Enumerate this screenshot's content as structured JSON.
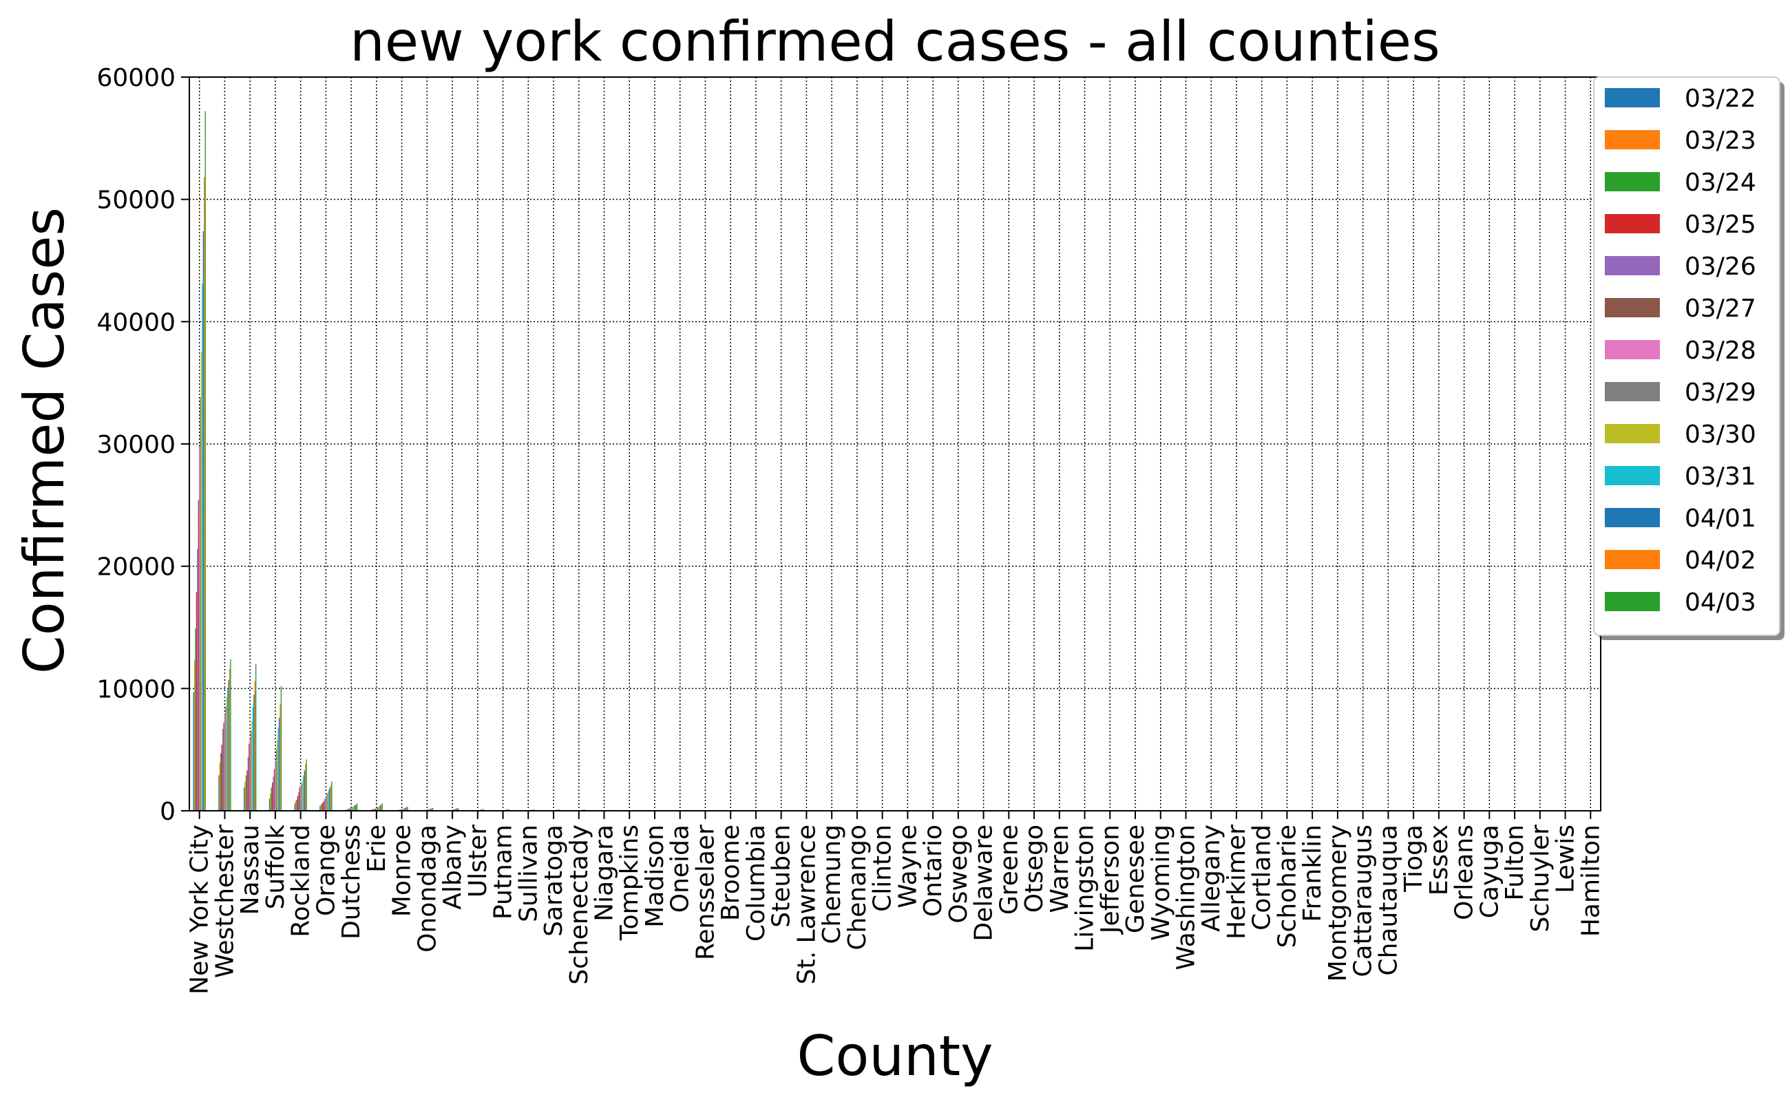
{
  "chart_data": {
    "type": "bar",
    "title": "new york confirmed cases - all counties",
    "xlabel": "County",
    "ylabel": "Confirmed Cases",
    "ylim": [
      0,
      60000
    ],
    "yticks": [
      0,
      10000,
      20000,
      30000,
      40000,
      50000,
      60000
    ],
    "grid": true,
    "legend_position": "top-right",
    "colors": [
      "#1f77b4",
      "#ff7f0e",
      "#2ca02c",
      "#d62728",
      "#9467bd",
      "#8c564b",
      "#e377c2",
      "#7f7f7f",
      "#bcbd22",
      "#17becf",
      "#1f77b4",
      "#ff7f0e",
      "#2ca02c"
    ],
    "categories": [
      "New York City",
      "Westchester",
      "Nassau",
      "Suffolk",
      "Rockland",
      "Orange",
      "Dutchess",
      "Erie",
      "Monroe",
      "Onondaga",
      "Albany",
      "Ulster",
      "Putnam",
      "Sullivan",
      "Saratoga",
      "Schenectady",
      "Niagara",
      "Tompkins",
      "Madison",
      "Oneida",
      "Rensselaer",
      "Broome",
      "Columbia",
      "Steuben",
      "St. Lawrence",
      "Chemung",
      "Chenango",
      "Clinton",
      "Wayne",
      "Ontario",
      "Oswego",
      "Delaware",
      "Greene",
      "Otsego",
      "Warren",
      "Livingston",
      "Jefferson",
      "Genesee",
      "Wyoming",
      "Washington",
      "Allegany",
      "Herkimer",
      "Cortland",
      "Schoharie",
      "Franklin",
      "Montgomery",
      "Cattaraugus",
      "Chautauqua",
      "Tioga",
      "Essex",
      "Orleans",
      "Cayuga",
      "Fulton",
      "Schuyler",
      "Lewis",
      "Hamilton"
    ],
    "series": [
      {
        "name": "03/22",
        "values": [
          9700,
          2900,
          1900,
          1000,
          600,
          400,
          70,
          60,
          40,
          30,
          20,
          15,
          15,
          10,
          15,
          10,
          8,
          8,
          5,
          3,
          5,
          2,
          5,
          2,
          1,
          2,
          1,
          1,
          1,
          1,
          1,
          1,
          1,
          1,
          1,
          1,
          1,
          1,
          1,
          1,
          1,
          1,
          1,
          1,
          1,
          0,
          0,
          0,
          0,
          0,
          0,
          0,
          0,
          0,
          0,
          0
        ]
      },
      {
        "name": "03/23",
        "values": [
          12300,
          3900,
          2400,
          1400,
          800,
          500,
          90,
          90,
          50,
          40,
          30,
          20,
          20,
          15,
          20,
          15,
          10,
          10,
          8,
          5,
          8,
          3,
          8,
          3,
          2,
          3,
          2,
          2,
          2,
          2,
          2,
          2,
          2,
          2,
          2,
          2,
          2,
          2,
          1,
          1,
          1,
          1,
          1,
          1,
          1,
          1,
          1,
          1,
          1,
          0,
          0,
          0,
          0,
          0,
          0,
          0
        ]
      },
      {
        "name": "03/24",
        "values": [
          14900,
          4700,
          2900,
          1900,
          900,
          600,
          120,
          110,
          60,
          50,
          40,
          25,
          25,
          20,
          25,
          20,
          12,
          12,
          10,
          7,
          10,
          5,
          10,
          5,
          3,
          4,
          3,
          3,
          3,
          3,
          3,
          3,
          3,
          3,
          3,
          3,
          3,
          3,
          2,
          2,
          2,
          2,
          2,
          2,
          2,
          1,
          1,
          1,
          1,
          1,
          1,
          1,
          1,
          0,
          0,
          0
        ]
      },
      {
        "name": "03/25",
        "values": [
          17900,
          5400,
          3300,
          2300,
          1200,
          700,
          150,
          130,
          80,
          60,
          50,
          30,
          30,
          25,
          30,
          25,
          15,
          15,
          12,
          10,
          12,
          8,
          12,
          7,
          4,
          5,
          4,
          4,
          4,
          4,
          4,
          4,
          4,
          4,
          4,
          4,
          4,
          4,
          3,
          3,
          3,
          3,
          3,
          3,
          3,
          2,
          2,
          2,
          2,
          2,
          2,
          2,
          2,
          1,
          1,
          0
        ]
      },
      {
        "name": "03/26",
        "values": [
          21400,
          6700,
          4400,
          2800,
          1500,
          800,
          180,
          150,
          100,
          70,
          60,
          40,
          40,
          30,
          35,
          30,
          20,
          20,
          15,
          12,
          15,
          10,
          15,
          8,
          5,
          7,
          5,
          5,
          5,
          5,
          5,
          5,
          5,
          5,
          5,
          5,
          5,
          5,
          4,
          4,
          4,
          4,
          4,
          4,
          4,
          3,
          3,
          3,
          3,
          3,
          3,
          3,
          3,
          2,
          1,
          1
        ]
      },
      {
        "name": "03/27",
        "values": [
          25400,
          7200,
          5500,
          3400,
          1900,
          1000,
          210,
          180,
          110,
          80,
          70,
          45,
          45,
          35,
          40,
          35,
          25,
          25,
          18,
          15,
          18,
          12,
          18,
          10,
          6,
          8,
          6,
          6,
          6,
          6,
          6,
          6,
          6,
          6,
          6,
          6,
          6,
          6,
          5,
          5,
          5,
          5,
          5,
          5,
          5,
          4,
          4,
          4,
          4,
          4,
          3,
          3,
          3,
          2,
          2,
          1
        ]
      },
      {
        "name": "03/28",
        "values": [
          29800,
          7900,
          5900,
          4100,
          2100,
          1200,
          250,
          230,
          140,
          100,
          90,
          55,
          55,
          45,
          50,
          40,
          30,
          30,
          22,
          18,
          22,
          15,
          22,
          12,
          8,
          10,
          7,
          7,
          7,
          7,
          7,
          7,
          7,
          7,
          7,
          7,
          7,
          7,
          6,
          6,
          6,
          6,
          6,
          6,
          6,
          5,
          5,
          5,
          5,
          5,
          4,
          4,
          4,
          3,
          2,
          1
        ]
      },
      {
        "name": "03/29",
        "values": [
          33800,
          8500,
          6500,
          5000,
          2200,
          1400,
          300,
          270,
          170,
          120,
          110,
          70,
          65,
          55,
          60,
          50,
          35,
          35,
          25,
          22,
          25,
          18,
          25,
          15,
          10,
          12,
          9,
          9,
          9,
          9,
          9,
          9,
          9,
          9,
          9,
          9,
          9,
          9,
          7,
          7,
          7,
          7,
          7,
          7,
          7,
          6,
          6,
          6,
          6,
          6,
          5,
          5,
          5,
          4,
          3,
          1
        ]
      },
      {
        "name": "03/30",
        "values": [
          37500,
          9300,
          7300,
          5800,
          2500,
          1500,
          350,
          310,
          200,
          140,
          130,
          80,
          75,
          65,
          70,
          60,
          40,
          40,
          30,
          25,
          30,
          20,
          30,
          18,
          12,
          14,
          10,
          10,
          10,
          10,
          10,
          10,
          10,
          10,
          10,
          10,
          10,
          10,
          8,
          8,
          8,
          8,
          8,
          8,
          8,
          7,
          7,
          7,
          7,
          7,
          6,
          6,
          6,
          5,
          3,
          2
        ]
      },
      {
        "name": "03/31",
        "values": [
          43100,
          9900,
          8500,
          6800,
          2900,
          1700,
          400,
          380,
          220,
          160,
          150,
          95,
          90,
          75,
          80,
          70,
          50,
          48,
          35,
          30,
          35,
          25,
          35,
          20,
          14,
          16,
          12,
          12,
          12,
          12,
          12,
          12,
          12,
          12,
          12,
          12,
          12,
          12,
          10,
          10,
          10,
          10,
          10,
          10,
          10,
          8,
          8,
          8,
          8,
          8,
          7,
          7,
          7,
          5,
          4,
          2
        ]
      },
      {
        "name": "04/01",
        "values": [
          47400,
          10700,
          9500,
          7600,
          3300,
          1900,
          450,
          450,
          260,
          190,
          180,
          110,
          100,
          85,
          90,
          80,
          55,
          55,
          40,
          35,
          40,
          30,
          40,
          25,
          16,
          18,
          14,
          14,
          14,
          14,
          14,
          14,
          14,
          14,
          14,
          14,
          14,
          14,
          12,
          12,
          12,
          12,
          12,
          12,
          12,
          10,
          10,
          10,
          10,
          10,
          8,
          8,
          8,
          6,
          4,
          2
        ]
      },
      {
        "name": "04/02",
        "values": [
          51800,
          11600,
          10600,
          8700,
          3800,
          2100,
          520,
          520,
          300,
          210,
          200,
          125,
          115,
          95,
          100,
          90,
          65,
          62,
          45,
          40,
          45,
          35,
          45,
          28,
          18,
          20,
          16,
          16,
          16,
          16,
          16,
          16,
          16,
          16,
          16,
          16,
          16,
          16,
          14,
          14,
          14,
          14,
          14,
          14,
          14,
          12,
          12,
          12,
          12,
          12,
          10,
          10,
          10,
          7,
          5,
          3
        ]
      },
      {
        "name": "04/03",
        "values": [
          57200,
          12400,
          12000,
          10200,
          4200,
          2400,
          600,
          620,
          330,
          240,
          220,
          140,
          130,
          110,
          115,
          100,
          75,
          70,
          50,
          45,
          50,
          40,
          50,
          32,
          20,
          22,
          18,
          18,
          18,
          18,
          18,
          18,
          18,
          18,
          18,
          18,
          18,
          18,
          16,
          16,
          16,
          16,
          16,
          16,
          16,
          14,
          14,
          14,
          14,
          14,
          12,
          12,
          12,
          8,
          6,
          3
        ]
      }
    ]
  }
}
